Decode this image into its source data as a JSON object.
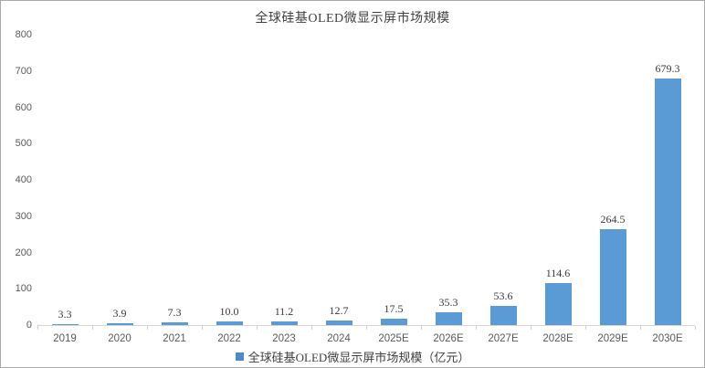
{
  "chart_data": {
    "type": "bar",
    "title": "全球硅基OLED微显示屏市场规模",
    "series_name": "全球硅基OLED微显示屏市场规模（亿元）",
    "categories": [
      "2019",
      "2020",
      "2021",
      "2022",
      "2023",
      "2024",
      "2025E",
      "2026E",
      "2027E",
      "2028E",
      "2029E",
      "2030E"
    ],
    "values": [
      3.3,
      3.9,
      7.3,
      10.0,
      11.2,
      12.7,
      17.5,
      35.3,
      53.6,
      114.6,
      264.5,
      679.3
    ],
    "data_labels": [
      "3.3",
      "3.9",
      "7.3",
      "10.0",
      "11.2",
      "12.7",
      "17.5",
      "35.3",
      "53.6",
      "114.6",
      "264.5",
      "679.3"
    ],
    "xlabel": "",
    "ylabel": "",
    "ylim": [
      0,
      800
    ],
    "ystep": 100,
    "grid": false,
    "legend_position": "bottom",
    "colors": {
      "bar": "#5b9bd5",
      "legend_marker": "#4a8bc8",
      "axis_line": "#d6d6d6",
      "tick": "#d0d0d0",
      "axis_text": "#595959",
      "label_text": "#3a3a3a",
      "title_text": "#404040"
    }
  }
}
